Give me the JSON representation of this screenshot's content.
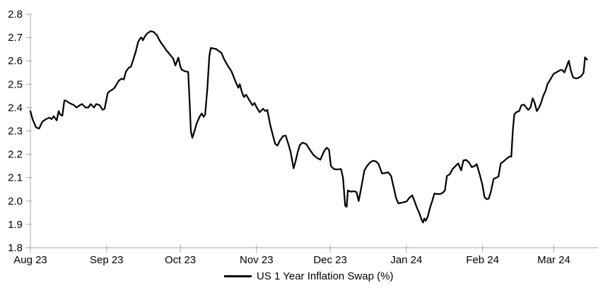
{
  "chart_data": {
    "type": "line",
    "title": "",
    "xlabel": "",
    "ylabel": "",
    "x_unit": "days since 1 Aug 2023",
    "xlim": [
      0,
      231
    ],
    "ylim": [
      1.8,
      2.8
    ],
    "grid": false,
    "legend_position": "bottom-center",
    "axis_color": "#a6a6a6",
    "text_color": "#000000",
    "background": "#ffffff",
    "y_ticks": [
      1.8,
      1.9,
      2.0,
      2.1,
      2.2,
      2.3,
      2.4,
      2.5,
      2.6,
      2.7,
      2.8
    ],
    "x_ticks": [
      {
        "d": 0,
        "label": "Aug 23"
      },
      {
        "d": 31,
        "label": "Sep 23"
      },
      {
        "d": 61,
        "label": "Oct 23"
      },
      {
        "d": 92,
        "label": "Nov 23"
      },
      {
        "d": 122,
        "label": "Dec 23"
      },
      {
        "d": 153,
        "label": "Jan 24"
      },
      {
        "d": 184,
        "label": "Feb 24"
      },
      {
        "d": 213,
        "label": "Mar 24"
      }
    ],
    "series": [
      {
        "name": "US 1 Year Inflation Swap (%)",
        "color": "#000000",
        "stroke_width": 2.25,
        "points": [
          [
            0,
            2.385
          ],
          [
            0.9,
            2.35
          ],
          [
            2.3,
            2.315
          ],
          [
            3.5,
            2.31
          ],
          [
            4.9,
            2.34
          ],
          [
            6.3,
            2.35
          ],
          [
            7.8,
            2.357
          ],
          [
            8.6,
            2.35
          ],
          [
            9.5,
            2.363
          ],
          [
            10.7,
            2.345
          ],
          [
            11.5,
            2.385
          ],
          [
            12.1,
            2.37
          ],
          [
            13,
            2.365
          ],
          [
            13.8,
            2.43
          ],
          [
            14.4,
            2.43
          ],
          [
            15.8,
            2.42
          ],
          [
            16.7,
            2.415
          ],
          [
            17.8,
            2.41
          ],
          [
            18.7,
            2.4
          ],
          [
            20.1,
            2.41
          ],
          [
            21,
            2.415
          ],
          [
            22.5,
            2.4
          ],
          [
            23.6,
            2.4
          ],
          [
            24.5,
            2.415
          ],
          [
            25.9,
            2.4
          ],
          [
            26.8,
            2.415
          ],
          [
            28.2,
            2.41
          ],
          [
            29.4,
            2.39
          ],
          [
            30.2,
            2.395
          ],
          [
            31.4,
            2.46
          ],
          [
            32.2,
            2.47
          ],
          [
            33.1,
            2.475
          ],
          [
            34.3,
            2.485
          ],
          [
            35.1,
            2.5
          ],
          [
            36,
            2.515
          ],
          [
            37.1,
            2.524
          ],
          [
            38,
            2.52
          ],
          [
            38.9,
            2.554
          ],
          [
            40,
            2.57
          ],
          [
            40.9,
            2.575
          ],
          [
            41.7,
            2.6
          ],
          [
            42.9,
            2.64
          ],
          [
            43.8,
            2.68
          ],
          [
            44.6,
            2.695
          ],
          [
            45.2,
            2.7
          ],
          [
            45.8,
            2.688
          ],
          [
            46.6,
            2.705
          ],
          [
            47.5,
            2.717
          ],
          [
            48.9,
            2.727
          ],
          [
            50.1,
            2.724
          ],
          [
            51.5,
            2.71
          ],
          [
            52.4,
            2.69
          ],
          [
            53.3,
            2.675
          ],
          [
            54.4,
            2.66
          ],
          [
            55.3,
            2.645
          ],
          [
            56.1,
            2.636
          ],
          [
            57.3,
            2.62
          ],
          [
            58.1,
            2.61
          ],
          [
            59,
            2.58
          ],
          [
            60.2,
            2.614
          ],
          [
            61,
            2.577
          ],
          [
            61.6,
            2.562
          ],
          [
            63,
            2.555
          ],
          [
            64.2,
            2.553
          ],
          [
            64.8,
            2.42
          ],
          [
            65.3,
            2.3
          ],
          [
            65.9,
            2.27
          ],
          [
            66.8,
            2.3
          ],
          [
            67.6,
            2.33
          ],
          [
            68.8,
            2.36
          ],
          [
            69.7,
            2.375
          ],
          [
            70.5,
            2.36
          ],
          [
            71.1,
            2.37
          ],
          [
            72,
            2.48
          ],
          [
            72.8,
            2.62
          ],
          [
            73.4,
            2.655
          ],
          [
            74.6,
            2.653
          ],
          [
            75.7,
            2.65
          ],
          [
            76.9,
            2.64
          ],
          [
            77.7,
            2.635
          ],
          [
            78.9,
            2.605
          ],
          [
            80.3,
            2.58
          ],
          [
            81.8,
            2.555
          ],
          [
            82.6,
            2.535
          ],
          [
            83.5,
            2.51
          ],
          [
            84.6,
            2.485
          ],
          [
            85.2,
            2.5
          ],
          [
            86.1,
            2.465
          ],
          [
            86.9,
            2.445
          ],
          [
            87.8,
            2.455
          ],
          [
            89.2,
            2.43
          ],
          [
            90.4,
            2.41
          ],
          [
            91.2,
            2.42
          ],
          [
            92.1,
            2.4
          ],
          [
            93.3,
            2.38
          ],
          [
            94.7,
            2.395
          ],
          [
            95.6,
            2.385
          ],
          [
            96.4,
            2.39
          ],
          [
            97.6,
            2.325
          ],
          [
            98.7,
            2.28
          ],
          [
            99.6,
            2.245
          ],
          [
            100.5,
            2.237
          ],
          [
            101.6,
            2.26
          ],
          [
            102.8,
            2.278
          ],
          [
            103.9,
            2.28
          ],
          [
            105.1,
            2.24
          ],
          [
            105.9,
            2.21
          ],
          [
            107.1,
            2.14
          ],
          [
            107.9,
            2.17
          ],
          [
            108.8,
            2.21
          ],
          [
            109.7,
            2.24
          ],
          [
            110.8,
            2.25
          ],
          [
            112.3,
            2.243
          ],
          [
            113.7,
            2.22
          ],
          [
            115.1,
            2.198
          ],
          [
            116.6,
            2.185
          ],
          [
            118,
            2.177
          ],
          [
            119.5,
            2.213
          ],
          [
            120.6,
            2.228
          ],
          [
            121.5,
            2.22
          ],
          [
            122.3,
            2.15
          ],
          [
            123.5,
            2.137
          ],
          [
            124.9,
            2.135
          ],
          [
            126.4,
            2.137
          ],
          [
            127.2,
            2.1
          ],
          [
            128.1,
            1.98
          ],
          [
            128.7,
            1.975
          ],
          [
            129.2,
            2.045
          ],
          [
            130.4,
            2.04
          ],
          [
            131.6,
            2.042
          ],
          [
            132.7,
            2.038
          ],
          [
            133.6,
            2.0
          ],
          [
            134.7,
            2.06
          ],
          [
            135.9,
            2.13
          ],
          [
            137,
            2.15
          ],
          [
            138.2,
            2.165
          ],
          [
            139.3,
            2.172
          ],
          [
            140.5,
            2.17
          ],
          [
            141.6,
            2.16
          ],
          [
            143.1,
            2.118
          ],
          [
            144.5,
            2.12
          ],
          [
            145.6,
            2.123
          ],
          [
            146.8,
            2.107
          ],
          [
            148,
            2.05
          ],
          [
            148.8,
            2.012
          ],
          [
            149.7,
            1.99
          ],
          [
            150.9,
            1.992
          ],
          [
            152,
            1.995
          ],
          [
            153.1,
            1.998
          ],
          [
            154.3,
            2.015
          ],
          [
            155.4,
            2.024
          ],
          [
            156.3,
            2.0
          ],
          [
            157.4,
            1.968
          ],
          [
            158.3,
            1.947
          ],
          [
            159.2,
            1.92
          ],
          [
            159.8,
            1.908
          ],
          [
            160.3,
            1.925
          ],
          [
            160.9,
            1.915
          ],
          [
            161.8,
            1.936
          ],
          [
            162.6,
            1.97
          ],
          [
            163.5,
            2.0
          ],
          [
            164.4,
            2.032
          ],
          [
            165.5,
            2.03
          ],
          [
            166.7,
            2.03
          ],
          [
            167.8,
            2.035
          ],
          [
            168.7,
            2.045
          ],
          [
            169.5,
            2.107
          ],
          [
            170.7,
            2.115
          ],
          [
            171.8,
            2.137
          ],
          [
            173,
            2.15
          ],
          [
            174.1,
            2.161
          ],
          [
            175.3,
            2.131
          ],
          [
            176.2,
            2.173
          ],
          [
            177.3,
            2.176
          ],
          [
            178.5,
            2.165
          ],
          [
            179.6,
            2.145
          ],
          [
            180.8,
            2.15
          ],
          [
            181.6,
            2.158
          ],
          [
            182.8,
            2.116
          ],
          [
            183.9,
            2.07
          ],
          [
            184.8,
            2.017
          ],
          [
            185.7,
            2.008
          ],
          [
            186.5,
            2.01
          ],
          [
            187.4,
            2.04
          ],
          [
            188.5,
            2.095
          ],
          [
            189.7,
            2.1
          ],
          [
            190.5,
            2.105
          ],
          [
            191.4,
            2.16
          ],
          [
            192.6,
            2.17
          ],
          [
            193.7,
            2.18
          ],
          [
            194.9,
            2.19
          ],
          [
            195.7,
            2.19
          ],
          [
            196.3,
            2.3
          ],
          [
            196.9,
            2.37
          ],
          [
            197.7,
            2.38
          ],
          [
            198.9,
            2.385
          ],
          [
            199.8,
            2.41
          ],
          [
            200.9,
            2.412
          ],
          [
            201.8,
            2.4
          ],
          [
            202.6,
            2.39
          ],
          [
            203.5,
            2.4
          ],
          [
            204.4,
            2.44
          ],
          [
            205.2,
            2.42
          ],
          [
            206.1,
            2.385
          ],
          [
            207,
            2.4
          ],
          [
            207.8,
            2.42
          ],
          [
            208.7,
            2.45
          ],
          [
            209.6,
            2.47
          ],
          [
            210.4,
            2.5
          ],
          [
            211.3,
            2.515
          ],
          [
            212.1,
            2.53
          ],
          [
            213,
            2.545
          ],
          [
            213.9,
            2.55
          ],
          [
            214.7,
            2.555
          ],
          [
            215.6,
            2.56
          ],
          [
            216.5,
            2.56
          ],
          [
            217.3,
            2.55
          ],
          [
            218.2,
            2.575
          ],
          [
            219.1,
            2.6
          ],
          [
            219.9,
            2.56
          ],
          [
            220.8,
            2.53
          ],
          [
            221.7,
            2.525
          ],
          [
            222.5,
            2.525
          ],
          [
            223.4,
            2.53
          ],
          [
            224.2,
            2.535
          ],
          [
            225.1,
            2.55
          ],
          [
            225.7,
            2.615
          ],
          [
            226.5,
            2.605
          ]
        ]
      }
    ]
  }
}
